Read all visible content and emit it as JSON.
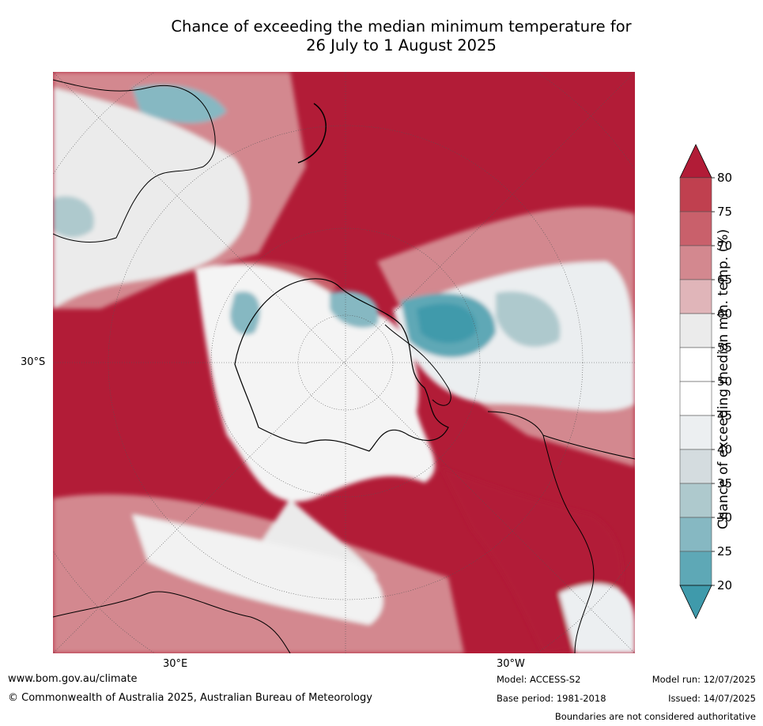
{
  "title_line1": "Chance of exceeding the median minimum temperature for",
  "title_line2": "26 July to 1 August 2025",
  "lat_label": "30°S",
  "lon_labels": [
    "30°E",
    "30°W"
  ],
  "colorbar": {
    "label": "Chance of exceeding median min. temp. (%)",
    "ticks": [
      "80",
      "75",
      "70",
      "65",
      "60",
      "55",
      "50",
      "45",
      "40",
      "35",
      "30",
      "25",
      "20"
    ],
    "colors": [
      "#b21c37",
      "#c0404f",
      "#c9606b",
      "#d3888f",
      "#e0b5b9",
      "#ebebeb",
      "#ffffff",
      "#ffffff",
      "#eceff1",
      "#d4dcdf",
      "#aec9cd",
      "#86b8c2",
      "#5ea8b6",
      "#3f9aab"
    ]
  },
  "footer": {
    "website": "www.bom.gov.au/climate",
    "copyright": "© Commonwealth of Australia 2025, Australian Bureau of Meteorology",
    "model": "Model: ACCESS-S2",
    "base_period": "Base period: 1981-2018",
    "model_run": "Model run: 12/07/2025",
    "issued": "Issued: 14/07/2025",
    "disclaimer": "Boundaries are not considered authoritative"
  }
}
